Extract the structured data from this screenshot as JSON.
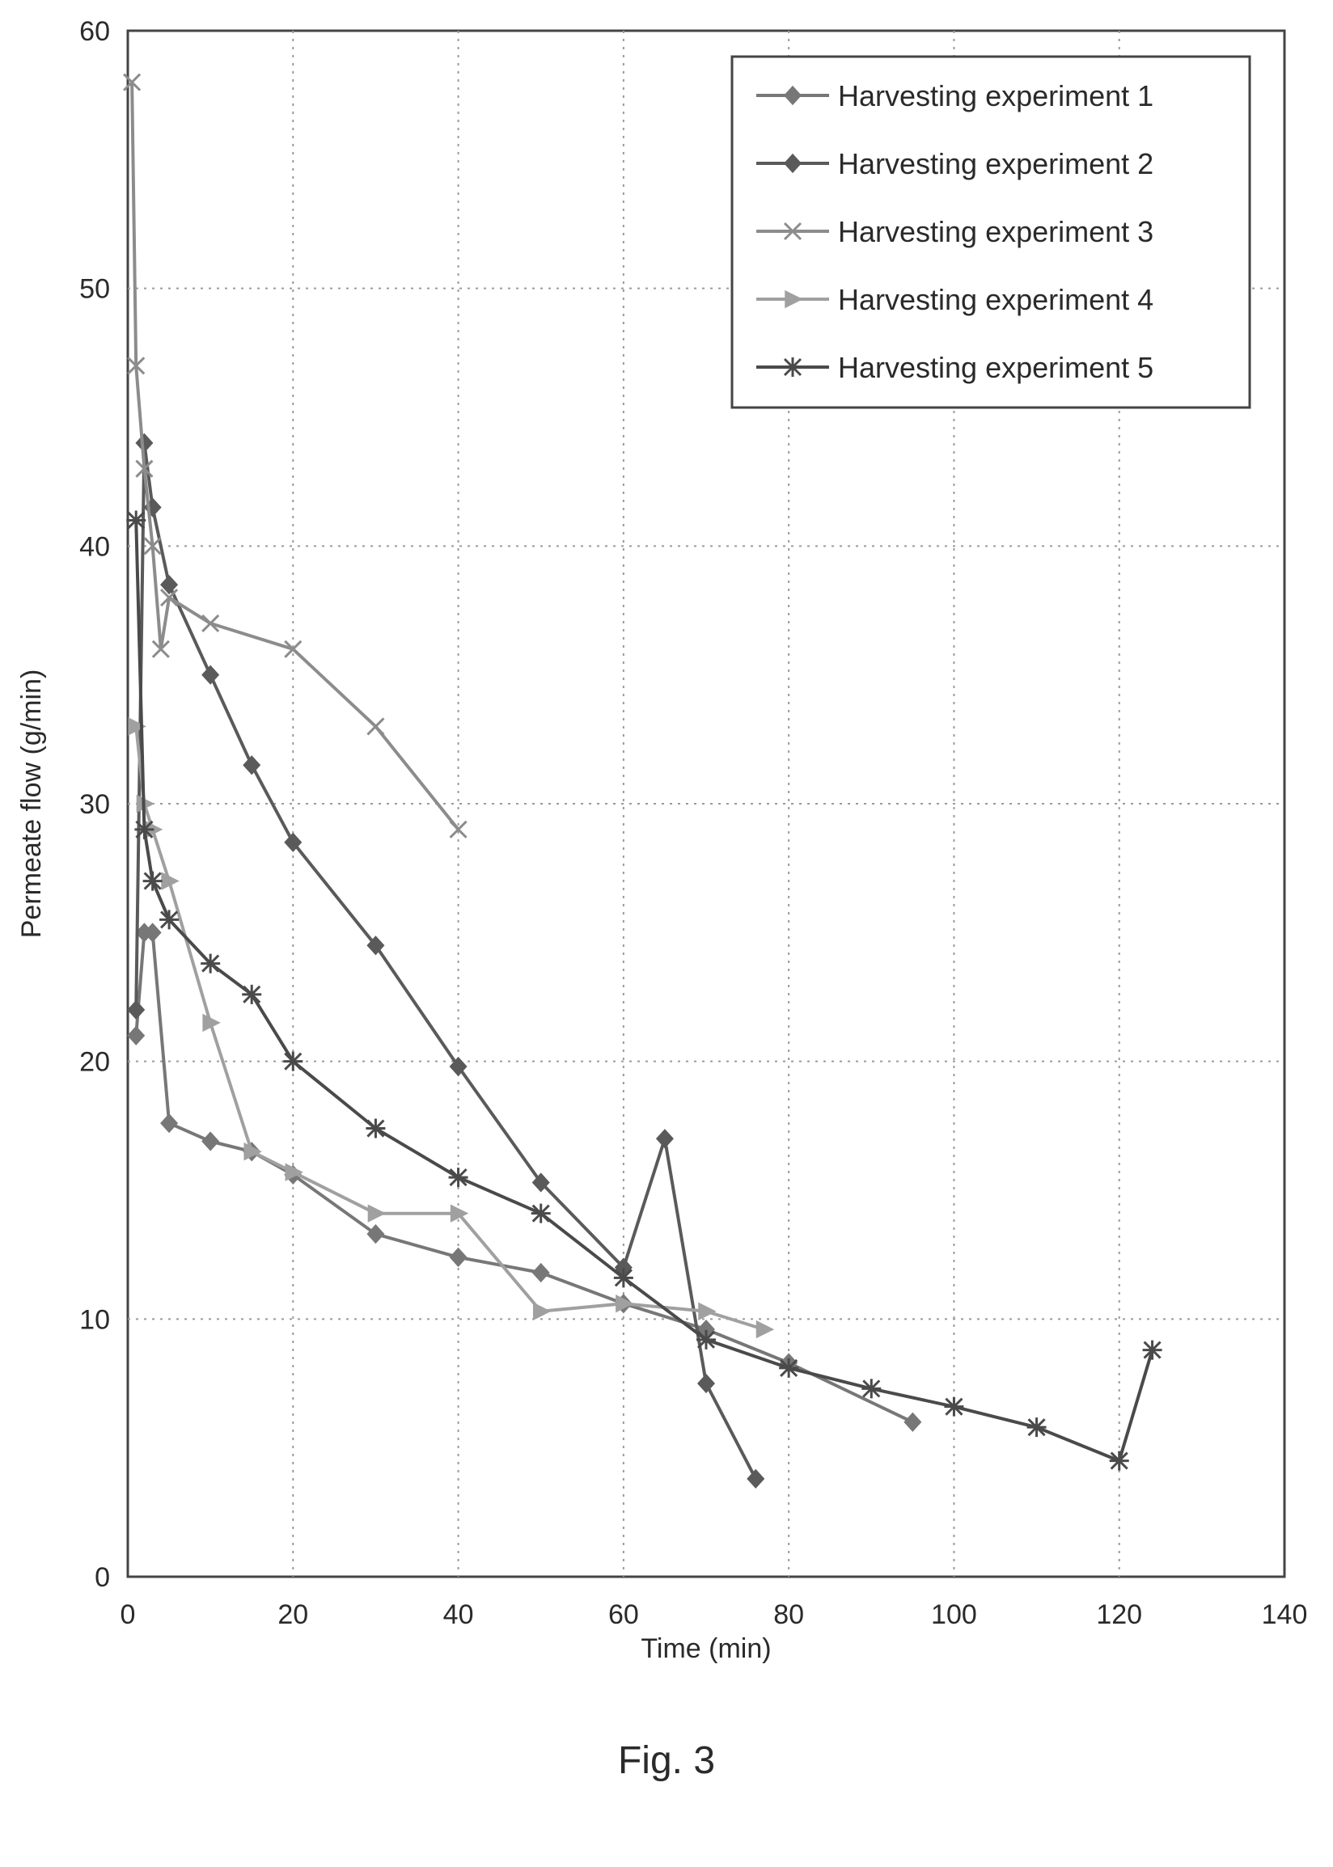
{
  "caption": "Fig. 3",
  "chart_data": {
    "type": "line",
    "xlabel": "Time (min)",
    "ylabel": "Permeate flow (g/min)",
    "xlim": [
      0,
      140
    ],
    "ylim": [
      0,
      60
    ],
    "xticks": [
      "0",
      "20",
      "40",
      "60",
      "80",
      "100",
      "120",
      "140"
    ],
    "yticks": [
      "0",
      "10",
      "20",
      "30",
      "40",
      "50",
      "60"
    ],
    "grid": true,
    "legend_position": "top-right",
    "series": [
      {
        "name": "Harvesting experiment 1",
        "color": "#777777",
        "marker": "diamond",
        "points": [
          [
            1,
            21
          ],
          [
            2,
            25
          ],
          [
            3,
            25
          ],
          [
            5,
            17.6
          ],
          [
            10,
            16.9
          ],
          [
            15,
            16.5
          ],
          [
            20,
            15.6
          ],
          [
            30,
            13.3
          ],
          [
            40,
            12.4
          ],
          [
            50,
            11.8
          ],
          [
            60,
            10.6
          ],
          [
            70,
            9.6
          ],
          [
            80,
            8.3
          ],
          [
            95,
            6
          ]
        ]
      },
      {
        "name": "Harvesting experiment 2",
        "color": "#5a5a5a",
        "marker": "diamond",
        "points": [
          [
            1,
            22
          ],
          [
            2,
            44
          ],
          [
            3,
            41.5
          ],
          [
            5,
            38.5
          ],
          [
            10,
            35
          ],
          [
            15,
            31.5
          ],
          [
            20,
            28.5
          ],
          [
            30,
            24.5
          ],
          [
            40,
            19.8
          ],
          [
            50,
            15.3
          ],
          [
            60,
            12
          ],
          [
            65,
            17
          ],
          [
            70,
            7.5
          ],
          [
            76,
            3.8
          ]
        ]
      },
      {
        "name": "Harvesting experiment 3",
        "color": "#8c8c8c",
        "marker": "x",
        "points": [
          [
            0.5,
            58
          ],
          [
            1,
            47
          ],
          [
            2,
            43
          ],
          [
            3,
            40
          ],
          [
            4,
            36
          ],
          [
            5,
            38
          ],
          [
            10,
            37
          ],
          [
            20,
            36
          ],
          [
            30,
            33
          ],
          [
            40,
            29
          ]
        ]
      },
      {
        "name": "Harvesting experiment 4",
        "color": "#a0a0a0",
        "marker": "triangle",
        "points": [
          [
            1,
            33
          ],
          [
            2,
            30
          ],
          [
            3,
            29
          ],
          [
            5,
            27
          ],
          [
            10,
            21.5
          ],
          [
            15,
            16.5
          ],
          [
            20,
            15.7
          ],
          [
            30,
            14.1
          ],
          [
            40,
            14.1
          ],
          [
            50,
            10.3
          ],
          [
            60,
            10.6
          ],
          [
            70,
            10.3
          ],
          [
            77,
            9.6
          ]
        ]
      },
      {
        "name": "Harvesting experiment 5",
        "color": "#4a4a4a",
        "marker": "asterisk",
        "points": [
          [
            1,
            41
          ],
          [
            2,
            29
          ],
          [
            3,
            27
          ],
          [
            5,
            25.5
          ],
          [
            10,
            23.8
          ],
          [
            15,
            22.6
          ],
          [
            20,
            20
          ],
          [
            30,
            17.4
          ],
          [
            40,
            15.5
          ],
          [
            50,
            14.1
          ],
          [
            60,
            11.6
          ],
          [
            70,
            9.2
          ],
          [
            80,
            8.1
          ],
          [
            90,
            7.3
          ],
          [
            100,
            6.6
          ],
          [
            110,
            5.8
          ],
          [
            120,
            4.5
          ],
          [
            124,
            8.8
          ]
        ]
      }
    ]
  }
}
